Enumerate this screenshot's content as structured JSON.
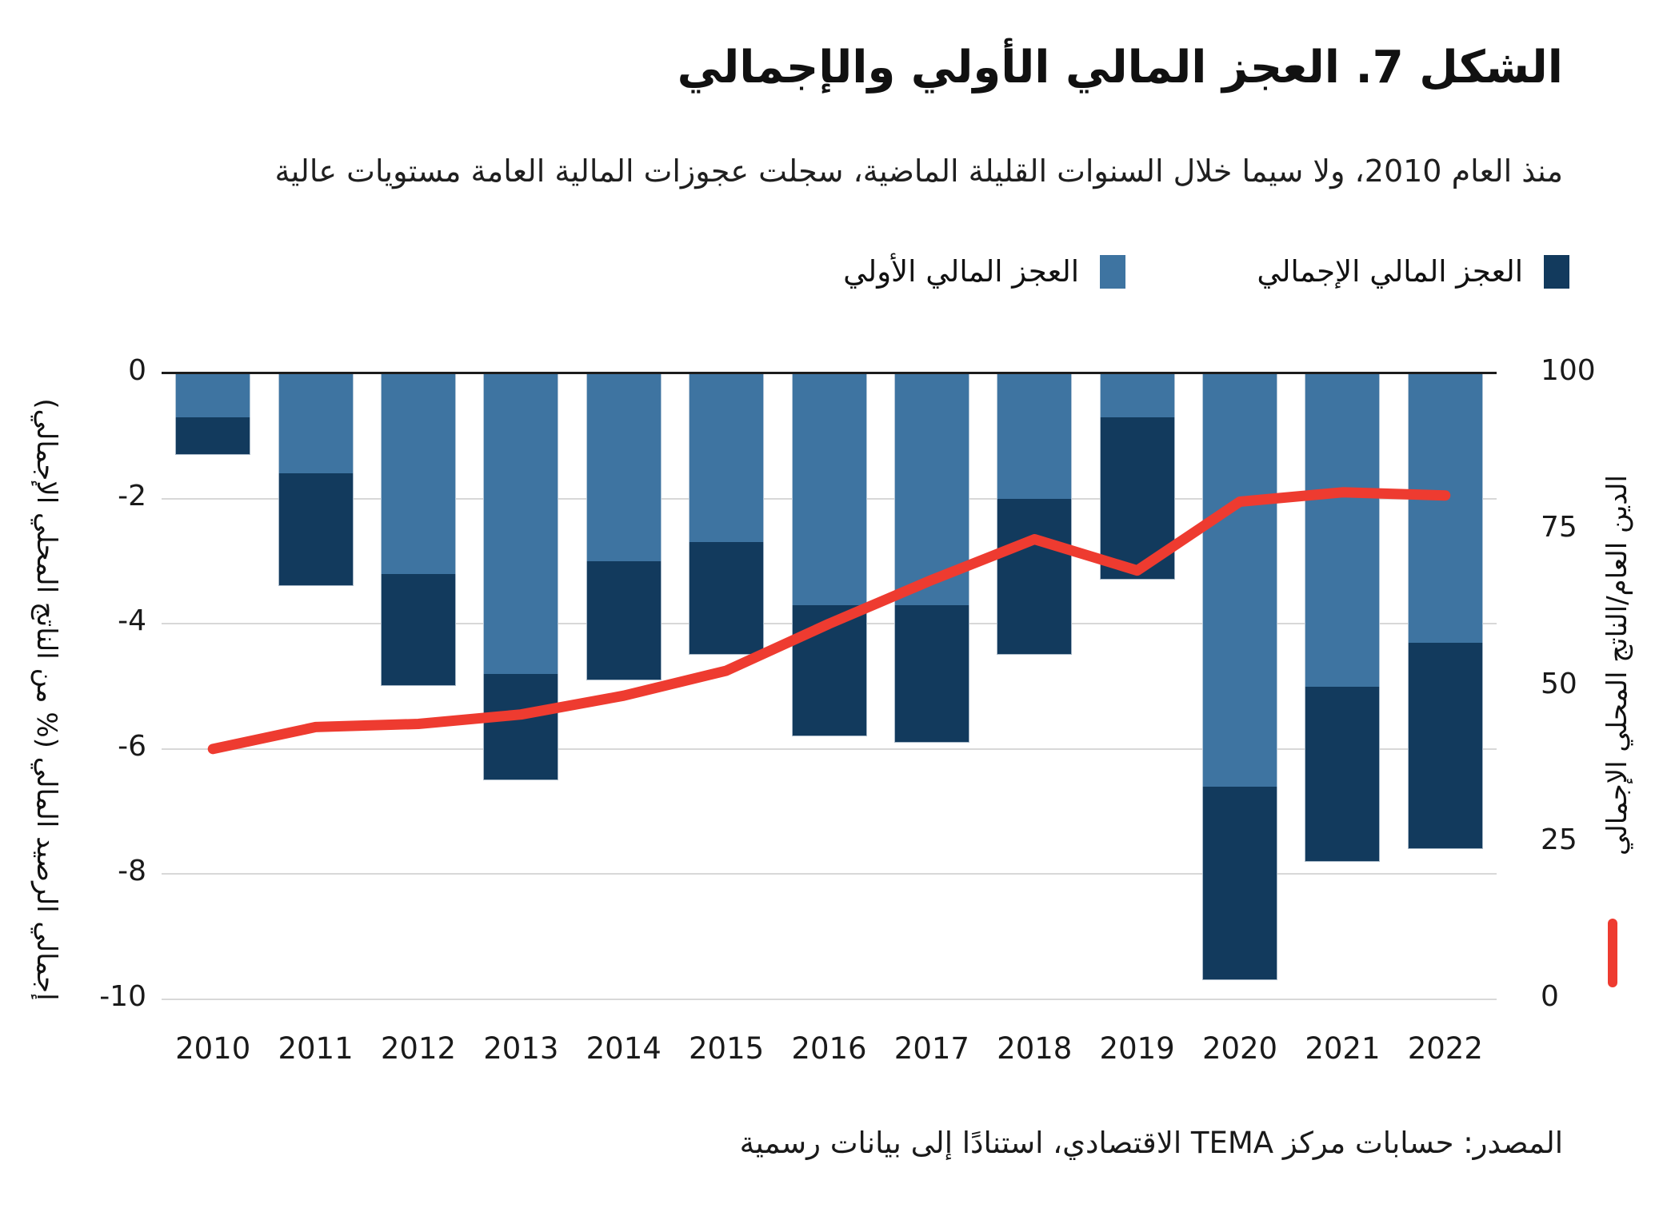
{
  "title": "الشكل 7. العجز المالي الأولي والإجمالي",
  "subtitle": "منذ العام 2010، ولا سيما خلال السنوات القليلة الماضية، سجلت عجوزات المالية العامة مستويات عالية",
  "legend": {
    "overall_label": "العجز المالي الإجمالي",
    "primary_label": "العجز المالي الأولي"
  },
  "axes": {
    "left": {
      "title": "إجمالي الرصيد المالي (% من الناتج المحلي الإجمالي)",
      "ticks": [
        "0",
        "-2",
        "-4",
        "-6",
        "-8",
        "-10"
      ],
      "range": [
        0,
        -10
      ]
    },
    "right": {
      "title": "الدين العام/الناتج المحلي الإجمالي",
      "ticks": [
        "100",
        "75",
        "50",
        "25",
        "0"
      ],
      "range": [
        0,
        100
      ]
    }
  },
  "source": "المصدر: حسابات مركز TEMA الاقتصادي، استنادًا إلى بيانات رسمية",
  "colors": {
    "primary_bar": "#3E74A1",
    "overall_bar": "#123A5D",
    "debt_line": "#EE3B30",
    "gridline": "#d8d8d8",
    "zero_line": "#1c1c1c"
  },
  "chart_data": {
    "type": "combo (stacked bar + line)",
    "categories": [
      "2010",
      "2011",
      "2012",
      "2013",
      "2014",
      "2015",
      "2016",
      "2017",
      "2018",
      "2019",
      "2020",
      "2021",
      "2022"
    ],
    "series": [
      {
        "name": "العجز المالي الأولي",
        "type": "bar",
        "axis": "left",
        "values": [
          -0.7,
          -1.6,
          -3.2,
          -4.8,
          -3.0,
          -2.7,
          -3.7,
          -3.7,
          -2.0,
          -0.7,
          -6.6,
          -5.0,
          -4.3
        ]
      },
      {
        "name": "العجز المالي الإجمالي",
        "type": "bar",
        "axis": "left",
        "values": [
          -1.3,
          -3.4,
          -5.0,
          -6.5,
          -4.9,
          -4.5,
          -5.8,
          -5.9,
          -4.5,
          -3.3,
          -9.7,
          -7.8,
          -7.6
        ]
      },
      {
        "name": "الدين العام/الناتج المحلي الإجمالي",
        "type": "line",
        "axis": "right",
        "values": [
          40,
          43.5,
          44,
          45.5,
          48.5,
          52.5,
          60,
          67,
          73.5,
          68.5,
          79.5,
          81,
          80.5
        ]
      }
    ],
    "left_ylim": [
      -10,
      0
    ],
    "right_ylim": [
      0,
      100
    ],
    "grid": "horizontal gridlines at -2,-4,-6,-8,-10; bold black line at 0",
    "legend_position": "top, right-aligned, RTL",
    "notes": "Bars stacked from 0 downward: light segment = primary deficit, dark segment continues to overall deficit. Red line = public debt/GDP on right axis."
  }
}
